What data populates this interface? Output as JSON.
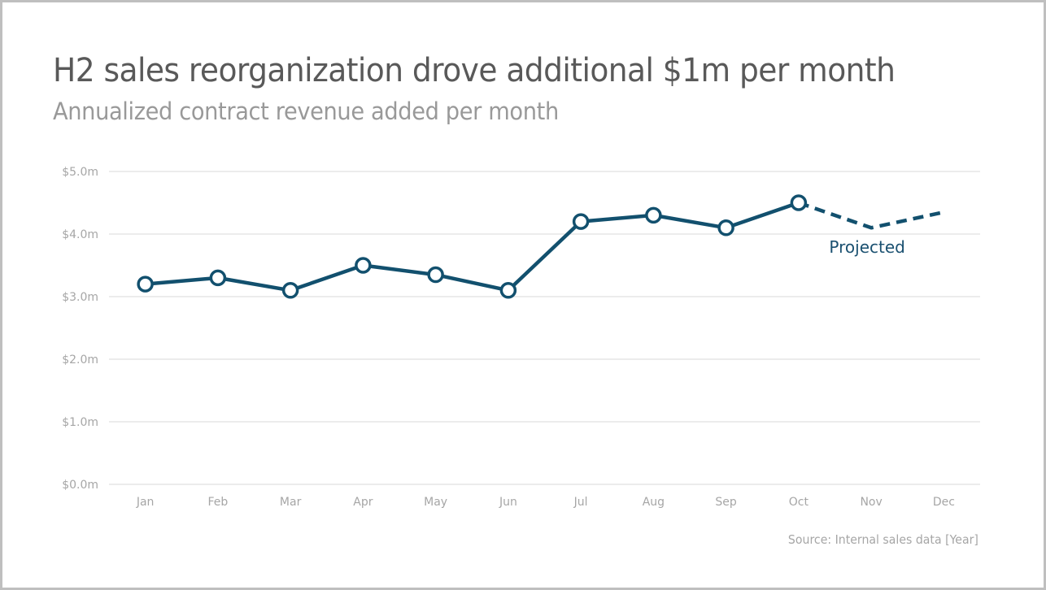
{
  "chart_data": {
    "type": "line",
    "title": "H2 sales reorganization drove additional $1m per month",
    "subtitle": "Annualized contract revenue added per month",
    "source": "Source: Internal sales data [Year]",
    "xlabel": "",
    "ylabel": "",
    "categories": [
      "Jan",
      "Feb",
      "Mar",
      "Apr",
      "May",
      "Jun",
      "Jul",
      "Aug",
      "Sep",
      "Oct",
      "Nov",
      "Dec"
    ],
    "series": [
      {
        "name": "Actual",
        "style": "solid-with-markers",
        "values": [
          3.2,
          3.3,
          3.1,
          3.5,
          3.35,
          3.1,
          4.2,
          4.3,
          4.1,
          4.5,
          null,
          null
        ]
      },
      {
        "name": "Projected",
        "style": "dashed",
        "values": [
          null,
          null,
          null,
          null,
          null,
          null,
          null,
          null,
          null,
          4.5,
          4.1,
          4.35
        ]
      }
    ],
    "annotations": [
      {
        "text": "Projected",
        "near_category": "Nov",
        "position": "below-line"
      }
    ],
    "ylim": [
      0,
      5
    ],
    "yticks": [
      0,
      1,
      2,
      3,
      4,
      5
    ],
    "ytick_labels": [
      "$0.0m",
      "$1.0m",
      "$2.0m",
      "$3.0m",
      "$4.0m",
      "$5.0m"
    ],
    "grid": true,
    "legend": "none",
    "colors": {
      "line": "#12506e",
      "grid": "#d9d9d9",
      "axis_text": "#a6a6a6",
      "title": "#595959",
      "subtitle": "#999999"
    }
  }
}
